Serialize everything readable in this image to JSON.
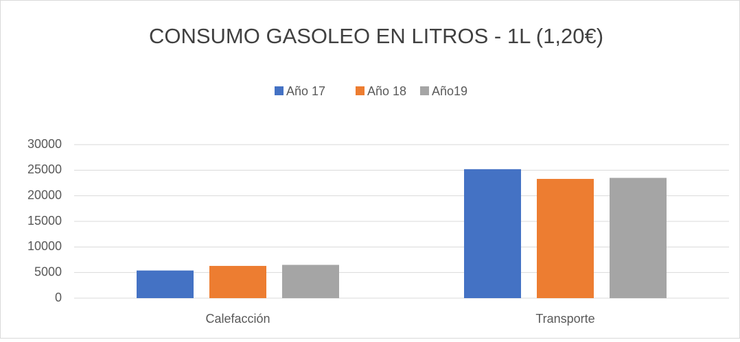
{
  "chart_data": {
    "type": "bar",
    "title": "CONSUMO GASOLEO EN LITROS - 1L (1,20€)",
    "categories": [
      "Calefacción",
      "Transporte"
    ],
    "series": [
      {
        "name": "Año 17",
        "color": "#4472c4",
        "values": [
          5400,
          25200
        ]
      },
      {
        "name": "Año 18",
        "color": "#ed7d31",
        "values": [
          6300,
          23300
        ]
      },
      {
        "name": "Año19",
        "color": "#a5a5a5",
        "values": [
          6500,
          23500
        ]
      }
    ],
    "ylim": [
      0,
      30000
    ],
    "yticks": [
      0,
      5000,
      10000,
      15000,
      20000,
      25000,
      30000
    ],
    "grid": true,
    "legend": "top"
  }
}
